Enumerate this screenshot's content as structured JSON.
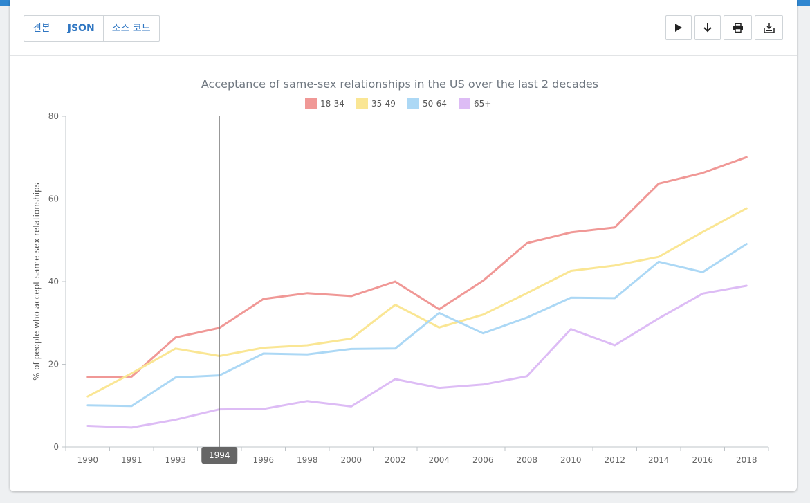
{
  "toolbar": {
    "tabs": [
      {
        "label": "견본"
      },
      {
        "label": "JSON"
      },
      {
        "label": "소스 코드"
      }
    ],
    "actions": [
      {
        "icon": "play-icon"
      },
      {
        "icon": "download-arrow-icon"
      },
      {
        "icon": "print-icon"
      },
      {
        "icon": "export-icon"
      }
    ]
  },
  "chart_data": {
    "type": "line",
    "title": "Acceptance of same-sex relationships in the US over the last 2 decades",
    "ylabel": "% of people who accept same-sex relationships",
    "xlabel": "",
    "categories": [
      "1990",
      "1991",
      "1993",
      "1994",
      "1996",
      "1998",
      "2000",
      "2002",
      "2004",
      "2006",
      "2008",
      "2010",
      "2012",
      "2014",
      "2016",
      "2018"
    ],
    "ylim": [
      0,
      80
    ],
    "yticks": [
      0,
      20,
      40,
      60,
      80
    ],
    "legend_position": "top",
    "grid": false,
    "cursor_label": "1994",
    "series": [
      {
        "name": "18-34",
        "color": "#f09896",
        "values": [
          16.9,
          17.0,
          26.5,
          28.8,
          35.8,
          37.2,
          36.5,
          40.0,
          33.3,
          40.2,
          49.3,
          51.9,
          53.1,
          63.7,
          66.3,
          70.1
        ]
      },
      {
        "name": "35-49",
        "color": "#fae694",
        "values": [
          12.2,
          17.8,
          23.8,
          22.0,
          24.0,
          24.6,
          26.2,
          34.4,
          28.9,
          32.0,
          37.2,
          42.6,
          43.9,
          46.0,
          52.0,
          57.7
        ]
      },
      {
        "name": "50-64",
        "color": "#acd8f5",
        "values": [
          10.1,
          9.9,
          16.8,
          17.3,
          22.6,
          22.4,
          23.7,
          23.8,
          32.4,
          27.5,
          31.3,
          36.1,
          36.0,
          44.8,
          42.3,
          49.1
        ]
      },
      {
        "name": "65+",
        "color": "#ddbcf5",
        "values": [
          5.1,
          4.7,
          6.6,
          9.1,
          9.2,
          11.1,
          9.8,
          16.4,
          14.3,
          15.1,
          17.1,
          28.5,
          24.6,
          31.1,
          37.1,
          39.0
        ]
      }
    ]
  }
}
